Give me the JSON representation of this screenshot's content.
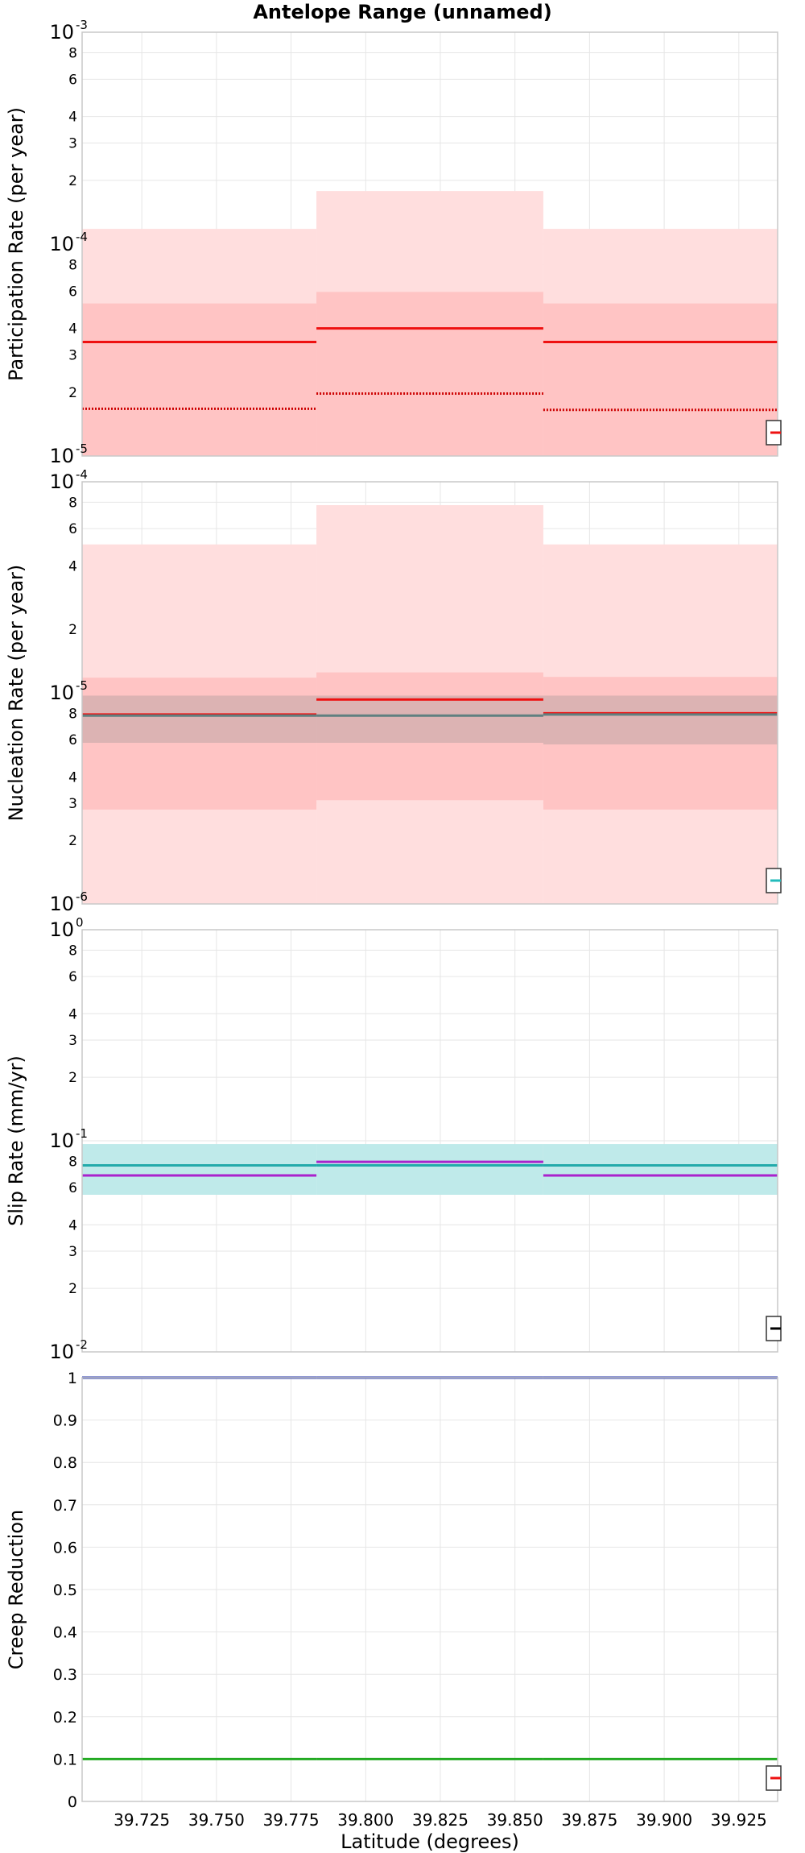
{
  "title": "Antelope Range (unnamed)",
  "chart_data": [
    {
      "type": "line",
      "panel": "participation",
      "ylabel": "Participation Rate (per year)",
      "yscale": "log",
      "ylim": [
        1e-05,
        0.001
      ],
      "x_edges": [
        39.705,
        39.7835,
        39.8595,
        39.938
      ],
      "series": [
        {
          "role": "outer_band",
          "color": "#ffdede",
          "lower": [
            1e-05,
            1e-05,
            1e-05
          ],
          "upper": [
            0.000118,
            0.000178,
            0.000118
          ]
        },
        {
          "role": "inner_band",
          "color": "#ffc4c4",
          "lower": [
            1e-05,
            1e-05,
            1e-05
          ],
          "upper": [
            5.25e-05,
            5.95e-05,
            5.25e-05
          ]
        },
        {
          "role": "mean",
          "color": "#ee1111",
          "style": "solid",
          "values": [
            3.45e-05,
            4e-05,
            3.45e-05
          ]
        },
        {
          "role": "dotted",
          "color": "#cc0000",
          "style": "dotted",
          "values": [
            1.67e-05,
            1.97e-05,
            1.65e-05
          ]
        }
      ],
      "yticks": [
        {
          "v": 1e-05,
          "base": "10",
          "exp": "-5"
        },
        {
          "v": 2e-05,
          "label": "2"
        },
        {
          "v": 3e-05,
          "label": "3"
        },
        {
          "v": 4e-05,
          "label": "4"
        },
        {
          "v": 6e-05,
          "label": "6"
        },
        {
          "v": 8e-05,
          "label": "8"
        },
        {
          "v": 0.0001,
          "base": "10",
          "exp": "-4"
        },
        {
          "v": 0.0002,
          "label": "2"
        },
        {
          "v": 0.0003,
          "label": "3"
        },
        {
          "v": 0.0004,
          "label": "4"
        },
        {
          "v": 0.0006,
          "label": "6"
        },
        {
          "v": 0.0008,
          "label": "8"
        },
        {
          "v": 0.001,
          "base": "10",
          "exp": "-3"
        }
      ],
      "legend_color": "#ee1111",
      "legend_placement": "bottom-right"
    },
    {
      "type": "line",
      "panel": "nucleation",
      "ylabel": "Nucleation Rate (per year)",
      "yscale": "log",
      "ylim": [
        1e-06,
        0.0001
      ],
      "x_edges": [
        39.705,
        39.7835,
        39.8595,
        39.938
      ],
      "series": [
        {
          "role": "outer_band",
          "color": "#ffdede",
          "lower": [
            1e-06,
            1e-06,
            1e-06
          ],
          "upper": [
            5.05e-05,
            7.75e-05,
            5.05e-05
          ]
        },
        {
          "role": "inner_band",
          "color": "#ffc4c4",
          "lower": [
            2.8e-06,
            3.1e-06,
            2.8e-06
          ],
          "upper": [
            1.18e-05,
            1.25e-05,
            1.19e-05
          ]
        },
        {
          "role": "gray_band",
          "color": "rgba(140,140,140,0.30)",
          "lower": [
            5.8e-06,
            5.8e-06,
            5.7e-06
          ],
          "upper": [
            9.7e-06,
            9.7e-06,
            9.7e-06
          ]
        },
        {
          "role": "mean",
          "color": "#ee1111",
          "style": "solid",
          "values": [
            7.9e-06,
            9.3e-06,
            8e-06
          ]
        },
        {
          "role": "gray_mean",
          "color": "#5f8080",
          "style": "solid",
          "values": [
            7.8e-06,
            7.8e-06,
            7.9e-06
          ]
        }
      ],
      "yticks": [
        {
          "v": 1e-06,
          "base": "10",
          "exp": "-6"
        },
        {
          "v": 2e-06,
          "label": "2"
        },
        {
          "v": 3e-06,
          "label": "3"
        },
        {
          "v": 4e-06,
          "label": "4"
        },
        {
          "v": 6e-06,
          "label": "6"
        },
        {
          "v": 8e-06,
          "label": "8"
        },
        {
          "v": 1e-05,
          "base": "10",
          "exp": "-5"
        },
        {
          "v": 2e-05,
          "label": "2"
        },
        {
          "v": 4e-05,
          "label": "4"
        },
        {
          "v": 6e-05,
          "label": "6"
        },
        {
          "v": 8e-05,
          "label": "8"
        },
        {
          "v": 0.0001,
          "base": "10",
          "exp": "-4"
        }
      ],
      "legend_color": "#22bbbb",
      "legend_placement": "bottom-right"
    },
    {
      "type": "line",
      "panel": "slip",
      "ylabel": "Slip Rate (mm/yr)",
      "yscale": "log",
      "ylim": [
        0.01,
        1
      ],
      "x_edges": [
        39.705,
        39.7835,
        39.8595,
        39.938
      ],
      "series": [
        {
          "role": "cyan_band",
          "color": "#bfeaea",
          "lower": [
            0.0555,
            0.0555,
            0.0555
          ],
          "upper": [
            0.0965,
            0.0965,
            0.0965
          ]
        },
        {
          "role": "cyan_mean",
          "color": "#22aaaa",
          "style": "solid",
          "values": [
            0.0765,
            0.0765,
            0.0765
          ]
        },
        {
          "role": "magenta_mean",
          "color": "#aa22cc",
          "style": "solid",
          "values": [
            0.0685,
            0.0795,
            0.0685
          ]
        }
      ],
      "yticks": [
        {
          "v": 0.01,
          "base": "10",
          "exp": "-2"
        },
        {
          "v": 0.02,
          "label": "2"
        },
        {
          "v": 0.03,
          "label": "3"
        },
        {
          "v": 0.04,
          "label": "4"
        },
        {
          "v": 0.06,
          "label": "6"
        },
        {
          "v": 0.08,
          "label": "8"
        },
        {
          "v": 0.1,
          "base": "10",
          "exp": "-1"
        },
        {
          "v": 0.2,
          "label": "2"
        },
        {
          "v": 0.3,
          "label": "3"
        },
        {
          "v": 0.4,
          "label": "4"
        },
        {
          "v": 0.6,
          "label": "6"
        },
        {
          "v": 0.8,
          "label": "8"
        },
        {
          "v": 1,
          "base": "10",
          "exp": "0"
        }
      ],
      "legend_color": "#000000",
      "legend_placement": "bottom-right"
    },
    {
      "type": "line",
      "panel": "creep",
      "ylabel": "Creep Reduction",
      "xlabel": "Latitude (degrees)",
      "yscale": "linear",
      "ylim": [
        0,
        1
      ],
      "x_edges": [
        39.705,
        39.7835,
        39.8595,
        39.938
      ],
      "series": [
        {
          "role": "blue_mean",
          "color": "#2233aa",
          "style": "solid",
          "values": [
            1.0,
            1.0,
            1.0
          ]
        },
        {
          "role": "green_mean",
          "color": "#22aa22",
          "style": "solid",
          "values": [
            0.1,
            0.1,
            0.1
          ]
        }
      ],
      "yticks": [
        {
          "v": 0,
          "label": "0"
        },
        {
          "v": 0.1,
          "label": "0.1"
        },
        {
          "v": 0.2,
          "label": "0.2"
        },
        {
          "v": 0.3,
          "label": "0.3"
        },
        {
          "v": 0.4,
          "label": "0.4"
        },
        {
          "v": 0.5,
          "label": "0.5"
        },
        {
          "v": 0.6,
          "label": "0.6"
        },
        {
          "v": 0.7,
          "label": "0.7"
        },
        {
          "v": 0.8,
          "label": "0.8"
        },
        {
          "v": 0.9,
          "label": "0.9"
        },
        {
          "v": 1,
          "label": "1"
        }
      ],
      "xticks": [
        {
          "v": 39.725,
          "label": "39.725"
        },
        {
          "v": 39.75,
          "label": "39.750"
        },
        {
          "v": 39.775,
          "label": "39.775"
        },
        {
          "v": 39.8,
          "label": "39.800"
        },
        {
          "v": 39.825,
          "label": "39.825"
        },
        {
          "v": 39.85,
          "label": "39.850"
        },
        {
          "v": 39.875,
          "label": "39.875"
        },
        {
          "v": 39.9,
          "label": "39.900"
        },
        {
          "v": 39.925,
          "label": "39.925"
        }
      ],
      "legend_color": "#ee1111",
      "legend_placement": "bottom-right"
    }
  ]
}
